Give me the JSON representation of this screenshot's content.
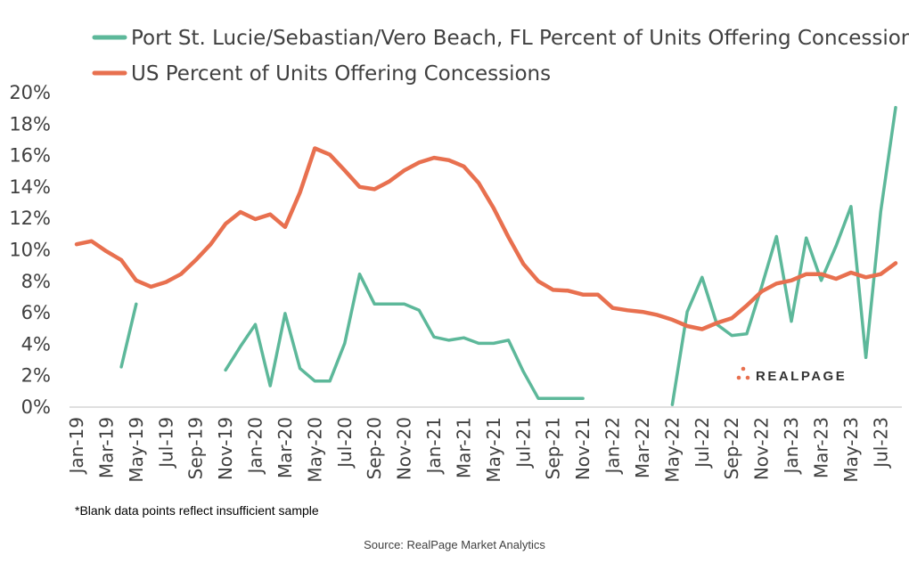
{
  "chart_data": {
    "type": "line",
    "title": "",
    "xlabel": "",
    "ylabel": "",
    "ylim": [
      0,
      20
    ],
    "yticks": [
      "0%",
      "2%",
      "4%",
      "6%",
      "8%",
      "10%",
      "12%",
      "14%",
      "16%",
      "18%",
      "20%"
    ],
    "grid": false,
    "legend_position": "top-left",
    "x": [
      "Jan-19",
      "Feb-19",
      "Mar-19",
      "Apr-19",
      "May-19",
      "Jun-19",
      "Jul-19",
      "Aug-19",
      "Sep-19",
      "Oct-19",
      "Nov-19",
      "Dec-19",
      "Jan-20",
      "Feb-20",
      "Mar-20",
      "Apr-20",
      "May-20",
      "Jun-20",
      "Jul-20",
      "Aug-20",
      "Sep-20",
      "Oct-20",
      "Nov-20",
      "Dec-20",
      "Jan-21",
      "Feb-21",
      "Mar-21",
      "Apr-21",
      "May-21",
      "Jun-21",
      "Jul-21",
      "Aug-21",
      "Sep-21",
      "Oct-21",
      "Nov-21",
      "Dec-21",
      "Jan-22",
      "Feb-22",
      "Mar-22",
      "Apr-22",
      "May-22",
      "Jun-22",
      "Jul-22",
      "Aug-22",
      "Sep-22",
      "Oct-22",
      "Nov-22",
      "Dec-22",
      "Jan-23",
      "Feb-23",
      "Mar-23",
      "Apr-23",
      "May-23",
      "Jun-23",
      "Jul-23",
      "Aug-23"
    ],
    "xtick_labels": [
      "Jan-19",
      "Mar-19",
      "May-19",
      "Jul-19",
      "Sep-19",
      "Nov-19",
      "Jan-20",
      "Mar-20",
      "May-20",
      "Jul-20",
      "Sep-20",
      "Nov-20",
      "Jan-21",
      "Mar-21",
      "May-21",
      "Jul-21",
      "Sep-21",
      "Nov-21",
      "Jan-22",
      "Mar-22",
      "May-22",
      "Jul-22",
      "Sep-22",
      "Nov-22",
      "Jan-23",
      "Mar-23",
      "May-23",
      "Jul-23"
    ],
    "series": [
      {
        "name": "Port St. Lucie/Sebastian/Vero Beach, FL Percent of Units Offering Concessions",
        "color": "#5DB89A",
        "values": [
          null,
          null,
          null,
          2.5,
          6.5,
          null,
          null,
          null,
          null,
          null,
          2.3,
          3.8,
          5.2,
          1.3,
          5.9,
          2.4,
          1.6,
          1.6,
          4.0,
          8.4,
          6.5,
          6.5,
          6.5,
          6.1,
          4.4,
          4.2,
          4.35,
          4.0,
          4.0,
          4.2,
          2.2,
          0.5,
          0.5,
          0.5,
          0.5,
          null,
          null,
          null,
          null,
          null,
          0.1,
          6.0,
          8.2,
          5.2,
          4.5,
          4.6,
          7.6,
          10.8,
          5.4,
          10.7,
          8.0,
          10.2,
          12.7,
          3.1,
          12.4,
          19.0
        ]
      },
      {
        "name": "US Percent of Units Offering Concessions",
        "color": "#E8704F",
        "values": [
          10.3,
          10.5,
          9.85,
          9.3,
          8.0,
          7.6,
          7.9,
          8.4,
          9.3,
          10.3,
          11.6,
          12.35,
          11.9,
          12.2,
          11.4,
          13.6,
          16.4,
          16.0,
          15.0,
          13.95,
          13.8,
          14.3,
          15.0,
          15.5,
          15.8,
          15.65,
          15.25,
          14.2,
          12.6,
          10.75,
          9.05,
          7.95,
          7.4,
          7.35,
          7.1,
          7.1,
          6.25,
          6.1,
          6.0,
          5.8,
          5.5,
          5.1,
          4.9,
          5.3,
          5.6,
          6.4,
          7.3,
          7.8,
          8.0,
          8.4,
          8.4,
          8.1,
          8.5,
          8.2,
          8.4,
          9.1
        ]
      }
    ],
    "annotations": {
      "footnote": "*Blank data points reflect insufficient sample",
      "source": "Source: RealPage Market Analytics",
      "logo_text": "REALPAGE"
    }
  }
}
